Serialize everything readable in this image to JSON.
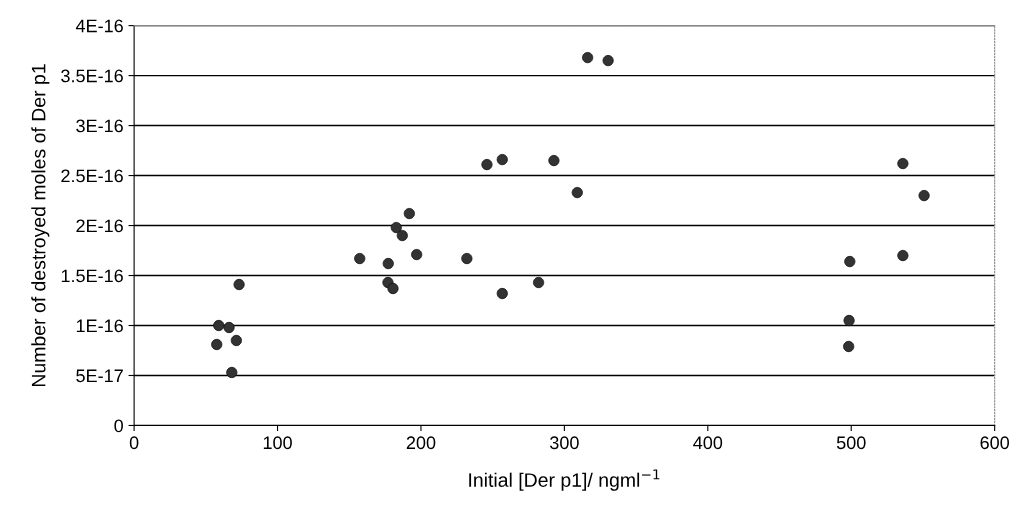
{
  "chart_data": {
    "type": "scatter",
    "xlabel": "Initial [Der p1]/ ngml$^{−1}$",
    "ylabel": "Number of destroyed moles of Der p1",
    "x": [
      57.6,
      59.0,
      66.2,
      68.1,
      71.3,
      73.2,
      157.3,
      177.2,
      177.0,
      180.5,
      182.8,
      187,
      191.9,
      197,
      232,
      246,
      256.7,
      256.7,
      282,
      292.7,
      309,
      316.2,
      330.5,
      499,
      498.5,
      498.2,
      536,
      536,
      550.8
    ],
    "values": [
      8.1e-17,
      1e-16,
      9.8e-17,
      5.3e-17,
      8.5e-17,
      1.41e-16,
      1.67e-16,
      1.62e-16,
      1.43e-16,
      1.37e-16,
      1.98e-16,
      1.9e-16,
      2.12e-16,
      1.71e-16,
      1.67e-16,
      2.61e-16,
      2.66e-16,
      1.32e-16,
      1.43e-16,
      2.65e-16,
      2.33e-16,
      3.68e-16,
      3.65e-16,
      1.64e-16,
      1.05e-16,
      7.9e-17,
      2.62e-16,
      1.7e-16,
      2.3e-16
    ],
    "color": "#333333",
    "marker": "circle",
    "grid": "y",
    "xlim": [
      0,
      600
    ],
    "xticks": [
      0,
      100,
      200,
      300,
      400,
      500,
      600
    ],
    "ylim": [
      0,
      4e-16
    ],
    "yticks": [
      {
        "value": 0,
        "label": "0"
      },
      {
        "value": 5e-17,
        "label": "5E-17"
      },
      {
        "value": 1e-16,
        "label": "1E-16"
      },
      {
        "value": 1.5e-16,
        "label": "1.5E-16"
      },
      {
        "value": 2e-16,
        "label": "2E-16"
      },
      {
        "value": 2.5e-16,
        "label": "2.5E-16"
      },
      {
        "value": 3e-16,
        "label": "3E-16"
      },
      {
        "value": 3.5e-16,
        "label": "3.5E-16"
      },
      {
        "value": 4e-16,
        "label": "4E-16"
      }
    ]
  }
}
